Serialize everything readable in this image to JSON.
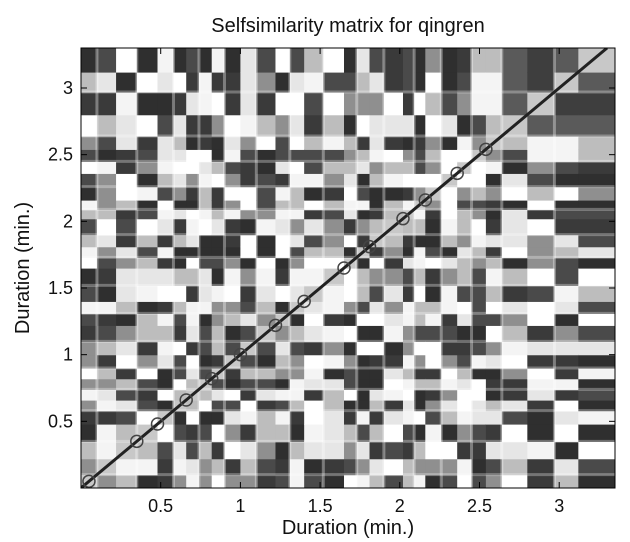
{
  "chart_data": {
    "type": "heatmap",
    "title": "Selfsimilarity matrix for qingren",
    "xlabel": "Duration (min.)",
    "ylabel": "Duration (min.)",
    "xlim": [
      0,
      3.35
    ],
    "ylim": [
      0,
      3.3
    ],
    "xticks": [
      0.5,
      1,
      1.5,
      2,
      2.5,
      3
    ],
    "xtick_labels": [
      "0.5",
      "1",
      "1.5",
      "2",
      "2.5",
      "3"
    ],
    "yticks": [
      0.5,
      1,
      1.5,
      2,
      2.5,
      3
    ],
    "ytick_labels": [
      "0.5",
      "1",
      "1.5",
      "2",
      "2.5",
      "3"
    ],
    "colormap": "grayscale",
    "diagonal_markers": [
      0.05,
      0.35,
      0.48,
      0.66,
      0.82,
      1.0,
      1.22,
      1.4,
      1.65,
      1.81,
      2.02,
      2.16,
      2.36,
      2.54
    ]
  }
}
